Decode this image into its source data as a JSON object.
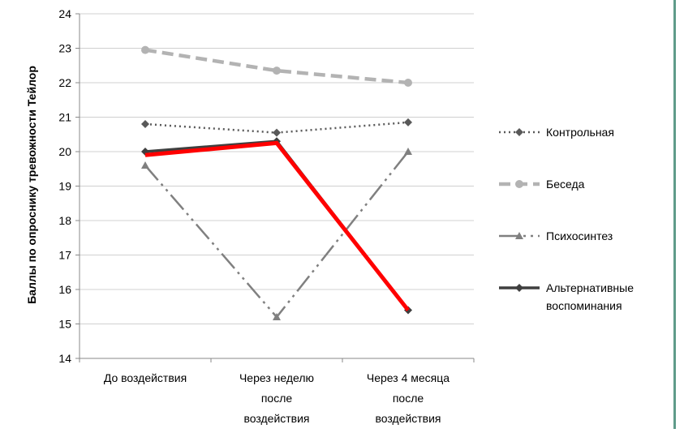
{
  "colors": {
    "gridline": "#d0d0d0",
    "axis": "#888888",
    "frame": "#5f9b8a",
    "kontrolnaya": "#595959",
    "beseda": "#b3b3b3",
    "psikhosintez": "#808080",
    "alternativnye": "#3f3f3f",
    "highlight": "#ff0000"
  },
  "chart_data": {
    "type": "line",
    "ylabel": "Баллы по опроснику тревожности Тейлор",
    "xlabel": "",
    "ylim": [
      14,
      24
    ],
    "yticks": [
      "14",
      "15",
      "16",
      "17",
      "18",
      "19",
      "20",
      "21",
      "22",
      "23",
      "24"
    ],
    "grid": true,
    "legend_position": "right",
    "categories": [
      [
        "До воздействия"
      ],
      [
        "Через неделю",
        "после",
        "воздействия"
      ],
      [
        "Через 4 месяца",
        "после",
        "воздействия"
      ]
    ],
    "series": [
      {
        "key": "kontrolnaya",
        "name": "Контрольная",
        "values": [
          20.8,
          20.55,
          20.85
        ],
        "marker": "diamond",
        "dash": "2,4",
        "width": 2.5
      },
      {
        "key": "beseda",
        "name": "Беседа",
        "values": [
          22.95,
          22.35,
          22.0
        ],
        "marker": "circle",
        "dash": "14,7",
        "width": 4.5
      },
      {
        "key": "psikhosintez",
        "name": "Психосинтез",
        "values": [
          19.6,
          15.2,
          20.0
        ],
        "marker": "triangle",
        "dash": "24,6,3,6,3,6",
        "width": 2.5
      },
      {
        "key": "alternativnye",
        "name": [
          "Альтернативные",
          "воспоминания"
        ],
        "values": [
          20.0,
          20.3,
          15.4
        ],
        "marker": "diamond",
        "dash": "",
        "width": 3.5
      }
    ],
    "highlight_line": {
      "values": [
        19.9,
        20.25,
        15.4
      ],
      "color": "#ff0000"
    }
  }
}
